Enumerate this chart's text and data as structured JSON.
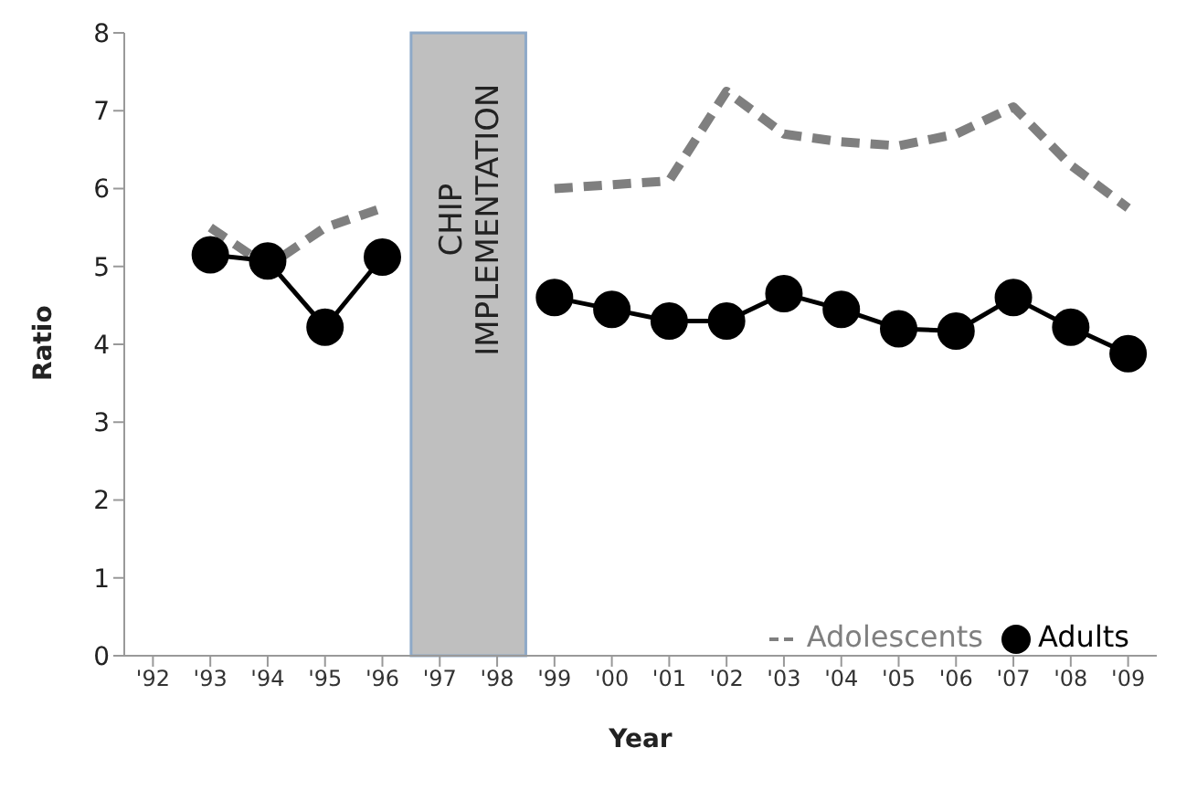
{
  "chart_data": {
    "type": "line",
    "xlabel": "Year",
    "ylabel": "Ratio",
    "categories": [
      "'92",
      "'93",
      "'94",
      "'95",
      "'96",
      "'97",
      "'98",
      "'99",
      "'00",
      "'01",
      "'02",
      "'03",
      "'04",
      "'05",
      "'06",
      "'07",
      "'08",
      "'09"
    ],
    "series": [
      {
        "name": "Adolescents",
        "color": "#7f7f7f",
        "line_style": "dashed",
        "marker": "none",
        "values": [
          null,
          5.5,
          5.0,
          5.5,
          5.75,
          null,
          null,
          6.0,
          6.05,
          6.1,
          7.25,
          6.7,
          6.6,
          6.55,
          6.7,
          7.05,
          6.3,
          5.75
        ]
      },
      {
        "name": "Adults",
        "color": "#000000",
        "line_style": "solid",
        "marker": "circle",
        "values": [
          null,
          5.15,
          5.07,
          4.22,
          5.12,
          null,
          null,
          4.6,
          4.45,
          4.3,
          4.3,
          4.65,
          4.45,
          4.2,
          4.17,
          4.6,
          4.22,
          3.88
        ]
      }
    ],
    "ylim": [
      0,
      8
    ],
    "yticks": [
      0,
      1,
      2,
      3,
      4,
      5,
      6,
      7,
      8
    ],
    "grid": false,
    "legend": "bottom right",
    "bands": [
      {
        "axis": "x",
        "from": "'97",
        "to": "'98",
        "label": "CHIP IMPLEMENTATION",
        "color": "#bfbfbf"
      }
    ]
  }
}
